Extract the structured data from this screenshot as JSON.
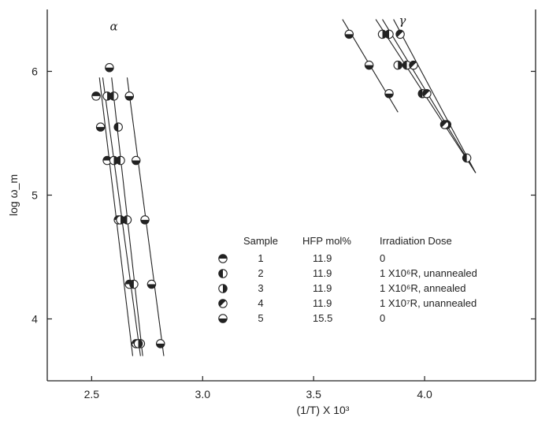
{
  "chart_data": {
    "type": "scatter",
    "xlabel": "(1/T) X 10³",
    "ylabel": "log ω_m",
    "xlim": [
      2.3,
      4.5
    ],
    "ylim": [
      3.5,
      6.5
    ],
    "x_ticks": [
      {
        "value": 2.5,
        "label": "2.5"
      },
      {
        "value": 3.0,
        "label": "3.0"
      },
      {
        "value": 3.5,
        "label": "3.5"
      },
      {
        "value": 4.0,
        "label": "4.0"
      }
    ],
    "y_ticks": [
      {
        "value": 4,
        "label": "4"
      },
      {
        "value": 5,
        "label": "5"
      },
      {
        "value": 6,
        "label": "6"
      }
    ],
    "panel_labels": [
      {
        "text": "α",
        "x": 2.6,
        "y": 6.33
      },
      {
        "text": "γ",
        "x": 3.9,
        "y": 6.38
      }
    ],
    "legend": {
      "headers": {
        "sample": "Sample",
        "hfp": "HFP mol%",
        "dose": "Irradiation Dose"
      },
      "rows": [
        {
          "sample": "1",
          "hfp": "11.9",
          "dose": "0",
          "fill": "top"
        },
        {
          "sample": "2",
          "hfp": "11.9",
          "dose": "1 X10⁶R, unannealed",
          "fill": "left"
        },
        {
          "sample": "3",
          "hfp": "11.9",
          "dose": "1 X10⁶R, annealed",
          "fill": "right"
        },
        {
          "sample": "4",
          "hfp": "11.9",
          "dose": "1 X10⁷R, unannealed",
          "fill": "diag"
        },
        {
          "sample": "5",
          "hfp": "15.5",
          "dose": "0",
          "fill": "bottom"
        }
      ]
    },
    "series": [
      {
        "sample": "1",
        "fill": "top",
        "points": [
          [
            2.52,
            5.8
          ],
          [
            2.57,
            5.28
          ],
          [
            2.62,
            4.8
          ],
          [
            2.67,
            4.28
          ],
          [
            2.7,
            3.8
          ]
        ]
      },
      {
        "sample": "2",
        "fill": "left",
        "points": [
          [
            2.6,
            5.8
          ],
          [
            2.62,
            5.55
          ],
          [
            2.63,
            5.28
          ],
          [
            2.66,
            4.8
          ],
          [
            2.69,
            4.28
          ],
          [
            2.72,
            3.8
          ],
          [
            3.84,
            6.3
          ],
          [
            3.92,
            6.05
          ],
          [
            3.99,
            5.82
          ],
          [
            4.19,
            5.3
          ]
        ]
      },
      {
        "sample": "3",
        "fill": "right",
        "points": [
          [
            2.57,
            5.8
          ],
          [
            2.6,
            5.28
          ],
          [
            2.63,
            4.8
          ],
          [
            2.71,
            3.8
          ],
          [
            3.81,
            6.3
          ],
          [
            3.88,
            6.05
          ],
          [
            4.1,
            5.57
          ]
        ]
      },
      {
        "sample": "4",
        "fill": "diag",
        "points": [
          [
            3.89,
            6.3
          ],
          [
            3.95,
            6.05
          ],
          [
            4.01,
            5.82
          ],
          [
            4.09,
            5.57
          ]
        ]
      },
      {
        "sample": "5",
        "fill": "bottom",
        "points": [
          [
            2.54,
            5.55
          ],
          [
            2.58,
            6.03
          ],
          [
            2.67,
            5.8
          ],
          [
            2.7,
            5.28
          ],
          [
            2.74,
            4.8
          ],
          [
            2.77,
            4.28
          ],
          [
            2.81,
            3.8
          ],
          [
            3.66,
            6.3
          ],
          [
            3.75,
            6.05
          ],
          [
            3.84,
            5.82
          ]
        ]
      }
    ],
    "fit_lines": [
      {
        "panel": "alpha",
        "from": [
          2.535,
          5.95
        ],
        "to": [
          2.685,
          3.7
        ]
      },
      {
        "panel": "alpha",
        "from": [
          2.55,
          5.95
        ],
        "to": [
          2.72,
          3.7
        ]
      },
      {
        "panel": "alpha",
        "from": [
          2.59,
          5.95
        ],
        "to": [
          2.73,
          3.7
        ]
      },
      {
        "panel": "alpha",
        "from": [
          2.66,
          5.95
        ],
        "to": [
          2.825,
          3.7
        ]
      },
      {
        "panel": "gamma",
        "from": [
          3.63,
          6.42
        ],
        "to": [
          3.88,
          5.67
        ]
      },
      {
        "panel": "gamma",
        "from": [
          3.78,
          6.42
        ],
        "to": [
          4.23,
          5.18
        ]
      },
      {
        "panel": "gamma",
        "from": [
          3.81,
          6.42
        ],
        "to": [
          4.23,
          5.18
        ]
      },
      {
        "panel": "gamma",
        "from": [
          3.86,
          6.42
        ],
        "to": [
          4.23,
          5.18
        ]
      }
    ]
  }
}
